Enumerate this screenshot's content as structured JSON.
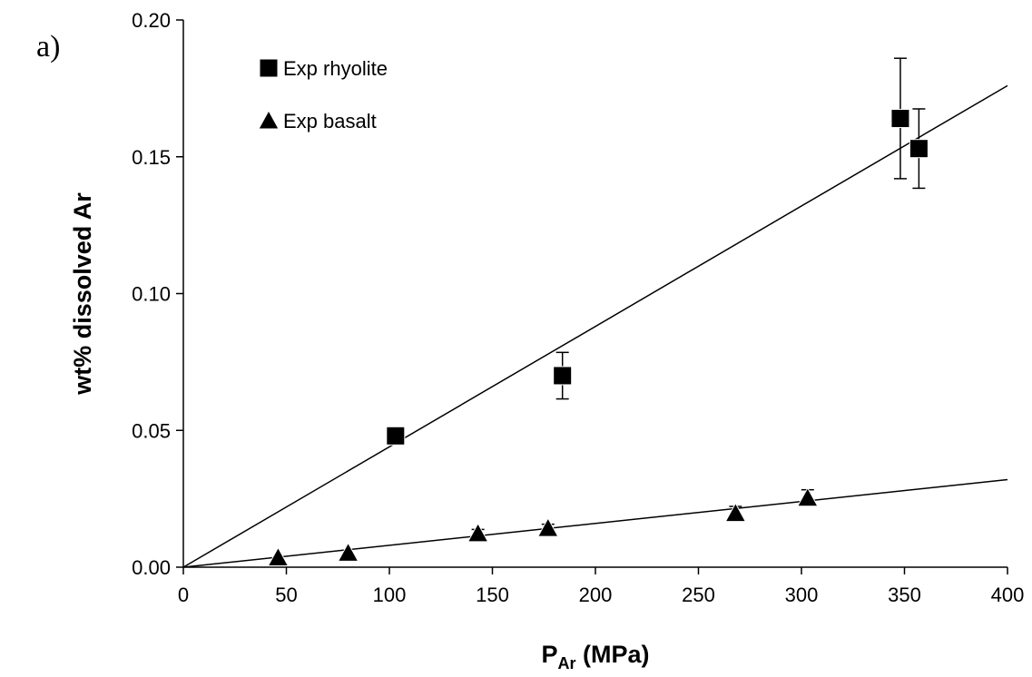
{
  "panel_label": "a)",
  "chart_data": {
    "type": "scatter",
    "xlabel_main": "P",
    "xlabel_sub": "Ar",
    "xlabel_rest": " (MPa)",
    "ylabel": "wt% dissolved Ar",
    "xlim": [
      0,
      400
    ],
    "ylim": [
      0,
      0.2
    ],
    "x_ticks": [
      0,
      50,
      100,
      150,
      200,
      250,
      300,
      350,
      400
    ],
    "x_tick_labels": [
      "0",
      "50",
      "100",
      "150",
      "200",
      "250",
      "300",
      "350",
      "400"
    ],
    "y_ticks": [
      0,
      0.05,
      0.1,
      0.15,
      0.2
    ],
    "y_tick_labels": [
      "0.00",
      "0.05",
      "0.10",
      "0.15",
      "0.20"
    ],
    "grid": false,
    "legend_position": "top-left",
    "series": [
      {
        "name": "Exp rhyolite",
        "marker": "square",
        "color": "#000000",
        "points": [
          {
            "x": 103,
            "y": 0.048
          },
          {
            "x": 184,
            "y": 0.07,
            "err_plus": 0.0085,
            "err_minus": 0.0085
          },
          {
            "x": 348,
            "y": 0.164,
            "err_plus": 0.022,
            "err_minus": 0.022
          },
          {
            "x": 357,
            "y": 0.153,
            "err_plus": 0.0145,
            "err_minus": 0.0145
          }
        ],
        "fit": {
          "x0": 0,
          "y0": 0,
          "x1": 400,
          "y1": 0.176
        }
      },
      {
        "name": "Exp basalt",
        "marker": "triangle",
        "color": "#000000",
        "points": [
          {
            "x": 46,
            "y": 0.0035
          },
          {
            "x": 80,
            "y": 0.0052
          },
          {
            "x": 143,
            "y": 0.0123,
            "err_plus": 0.0015,
            "err_minus": 0.0
          },
          {
            "x": 177,
            "y": 0.0142,
            "err_plus": 0.0015,
            "err_minus": 0.0
          },
          {
            "x": 268,
            "y": 0.0197,
            "err_plus": 0.0025,
            "err_minus": 0.0
          },
          {
            "x": 303,
            "y": 0.0253,
            "err_plus": 0.003,
            "err_minus": 0.0
          }
        ],
        "fit": {
          "x0": 0,
          "y0": 0,
          "x1": 400,
          "y1": 0.032
        }
      }
    ]
  }
}
